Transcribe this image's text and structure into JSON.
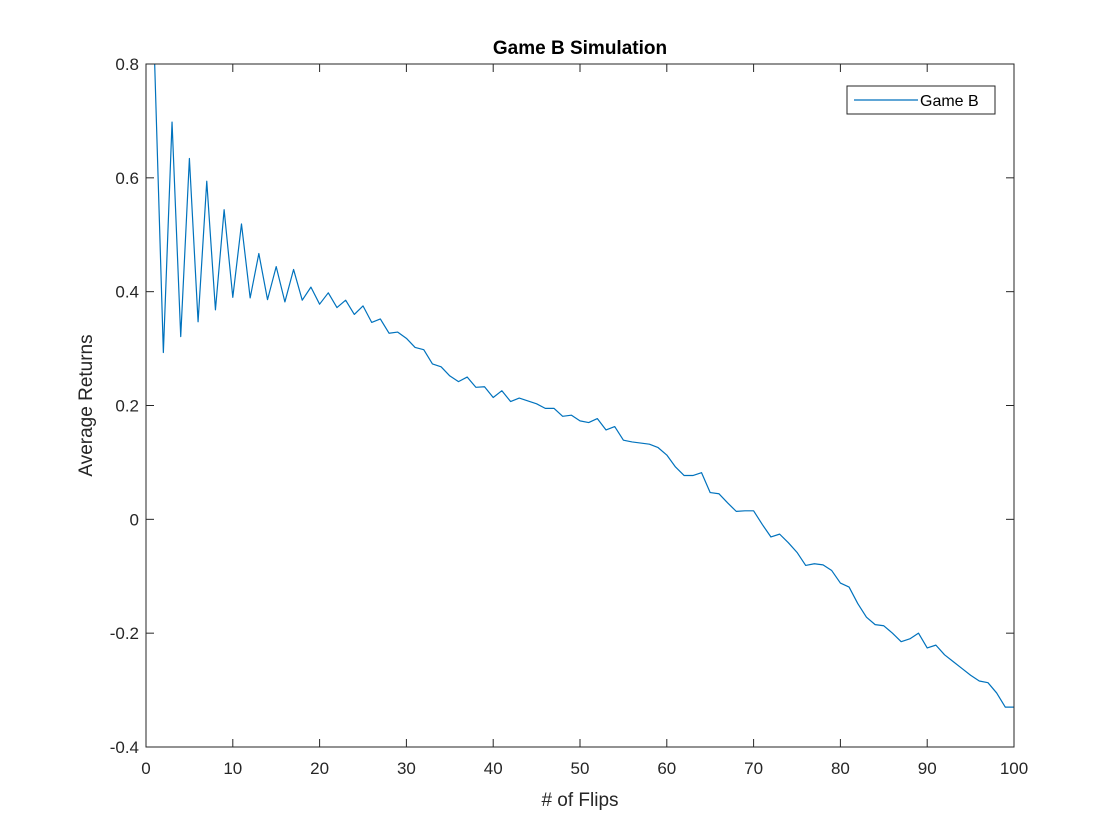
{
  "chart_data": {
    "type": "line",
    "title": "Game B Simulation",
    "xlabel": "# of Flips",
    "ylabel": "Average Returns",
    "xlim": [
      0,
      100
    ],
    "ylim": [
      -0.4,
      0.8
    ],
    "xticks": [
      0,
      10,
      20,
      30,
      40,
      50,
      60,
      70,
      80,
      90,
      100
    ],
    "yticks": [
      -0.4,
      -0.2,
      0,
      0.2,
      0.4,
      0.6,
      0.8
    ],
    "xtick_labels": [
      "0",
      "10",
      "20",
      "30",
      "40",
      "50",
      "60",
      "70",
      "80",
      "90",
      "100"
    ],
    "ytick_labels": [
      "-0.4",
      "-0.2",
      "0",
      "0.2",
      "0.4",
      "0.6",
      "0.8"
    ],
    "grid": false,
    "legend_position": "top-right",
    "series": [
      {
        "name": "Game B",
        "color": "#0072bd",
        "x": [
          1,
          2,
          3,
          4,
          5,
          6,
          7,
          8,
          9,
          10,
          11,
          12,
          13,
          14,
          15,
          16,
          17,
          18,
          19,
          20,
          21,
          22,
          23,
          24,
          25,
          26,
          27,
          28,
          29,
          30,
          31,
          32,
          33,
          34,
          35,
          36,
          37,
          38,
          39,
          40,
          41,
          42,
          43,
          44,
          45,
          46,
          47,
          48,
          49,
          50,
          51,
          52,
          53,
          54,
          55,
          56,
          57,
          58,
          59,
          60,
          61,
          62,
          63,
          64,
          65,
          66,
          67,
          68,
          69,
          70,
          71,
          72,
          73,
          74,
          75,
          76,
          77,
          78,
          79,
          80,
          81,
          82,
          83,
          84,
          85,
          86,
          87,
          88,
          89,
          90,
          91,
          92,
          93,
          94,
          95,
          96,
          97,
          98,
          99,
          100
        ],
        "y": [
          0.8,
          0.293,
          0.698,
          0.321,
          0.634,
          0.347,
          0.594,
          0.368,
          0.544,
          0.39,
          0.519,
          0.389,
          0.467,
          0.386,
          0.444,
          0.382,
          0.439,
          0.385,
          0.408,
          0.378,
          0.398,
          0.372,
          0.385,
          0.36,
          0.375,
          0.346,
          0.352,
          0.327,
          0.329,
          0.318,
          0.302,
          0.298,
          0.273,
          0.268,
          0.252,
          0.242,
          0.25,
          0.232,
          0.233,
          0.214,
          0.226,
          0.207,
          0.213,
          0.208,
          0.203,
          0.195,
          0.195,
          0.181,
          0.183,
          0.173,
          0.17,
          0.177,
          0.157,
          0.163,
          0.139,
          0.136,
          0.134,
          0.132,
          0.126,
          0.113,
          0.092,
          0.077,
          0.077,
          0.082,
          0.047,
          0.045,
          0.029,
          0.014,
          0.015,
          0.015,
          -0.009,
          -0.031,
          -0.026,
          -0.041,
          -0.058,
          -0.081,
          -0.078,
          -0.08,
          -0.09,
          -0.112,
          -0.119,
          -0.148,
          -0.172,
          -0.185,
          -0.187,
          -0.2,
          -0.215,
          -0.21,
          -0.2,
          -0.226,
          -0.221,
          -0.238,
          -0.25,
          -0.262,
          -0.274,
          -0.284,
          -0.287,
          -0.305,
          -0.33,
          -0.33
        ]
      }
    ]
  }
}
